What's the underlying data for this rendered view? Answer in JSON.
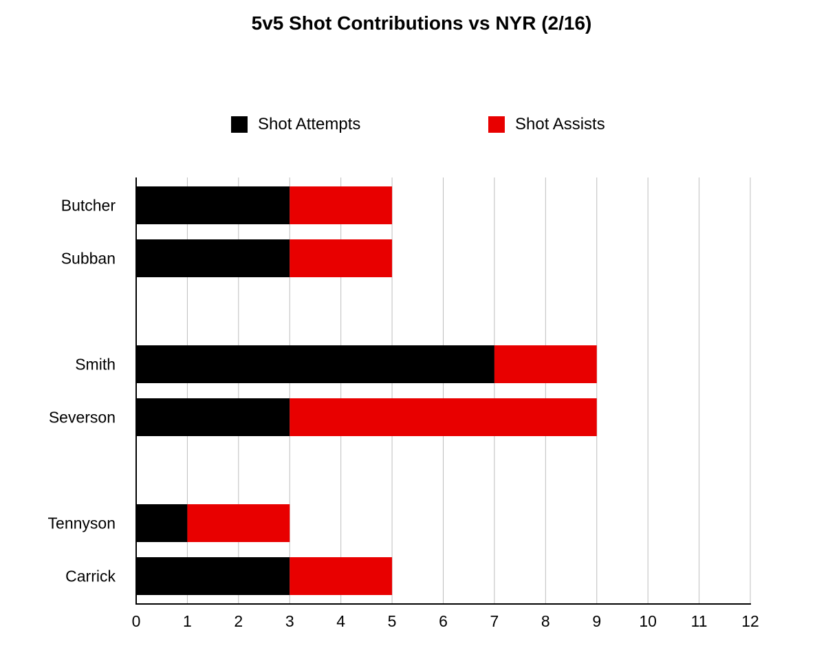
{
  "chart_data": {
    "type": "bar",
    "orientation": "horizontal",
    "stacked": true,
    "title": "5v5 Shot Contributions vs NYR (2/16)",
    "categories": [
      "Butcher",
      "Subban",
      "",
      "Smith",
      "Severson",
      "",
      "Tennyson",
      "Carrick"
    ],
    "series": [
      {
        "name": "Shot Attempts",
        "color": "#000000",
        "values": [
          3,
          3,
          null,
          7,
          3,
          null,
          1,
          3
        ]
      },
      {
        "name": "Shot Assists",
        "color": "#e80000",
        "values": [
          2,
          2,
          null,
          2,
          6,
          null,
          2,
          2
        ]
      }
    ],
    "xlim": [
      0,
      12
    ],
    "xticks": [
      "0",
      "1",
      "2",
      "3",
      "4",
      "5",
      "6",
      "7",
      "8",
      "9",
      "10",
      "11",
      "12"
    ],
    "xlabel": "",
    "ylabel": "",
    "grid": "vertical",
    "legend": "top-center"
  }
}
